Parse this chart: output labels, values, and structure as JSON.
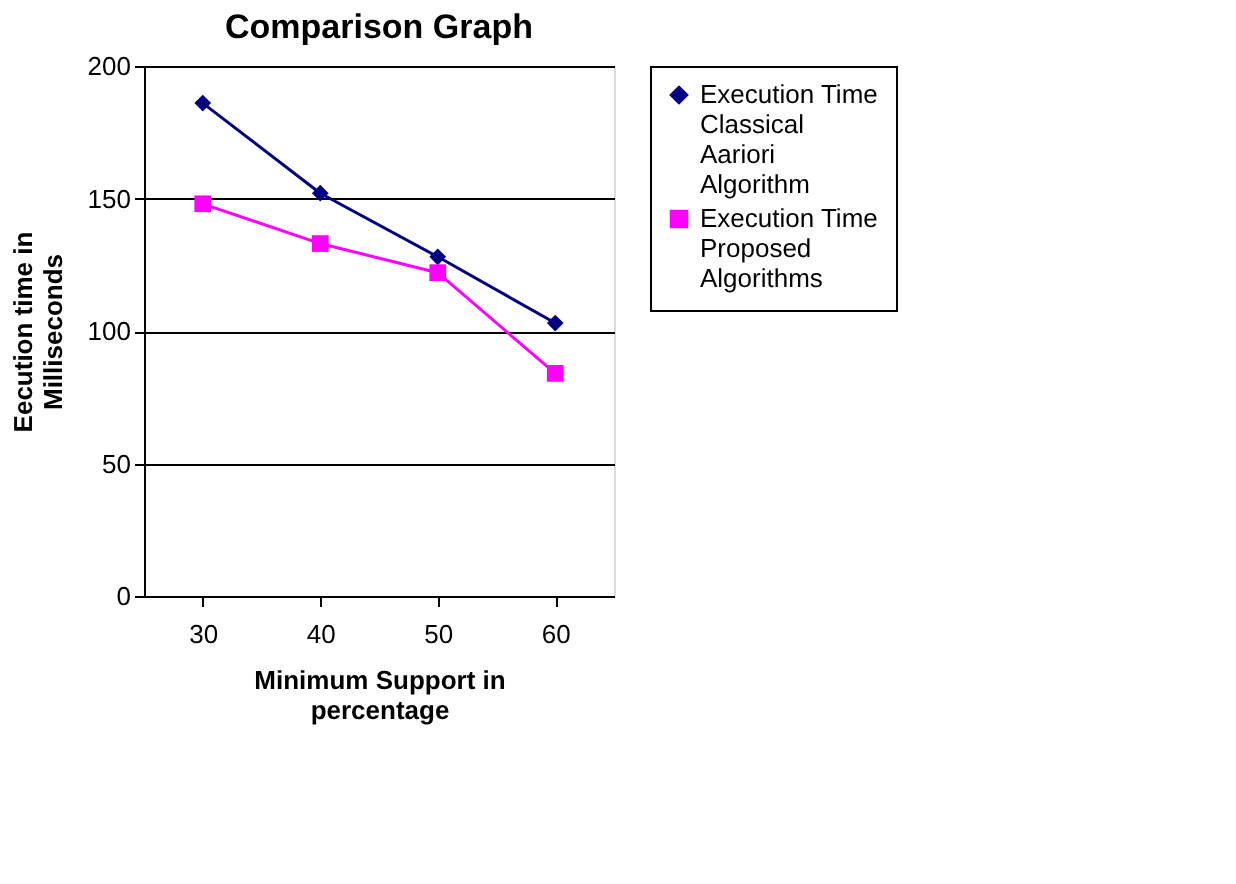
{
  "chart_data": {
    "type": "line",
    "title": "Comparison Graph",
    "xlabel": "Minimum Support in percentage",
    "ylabel": "Eecution time in Milliseconds",
    "categories": [
      "30",
      "40",
      "50",
      "60"
    ],
    "series": [
      {
        "name": "Execution Time Classical Aariori Algorithm",
        "color": "#000080",
        "values": [
          186,
          152,
          128,
          103
        ],
        "marker": "diamond"
      },
      {
        "name": "Execution Time Proposed Algorithms",
        "color": "#ff00ff",
        "values": [
          148,
          133,
          122,
          84
        ],
        "marker": "square"
      }
    ],
    "ylim": [
      0,
      200
    ],
    "yticks": [
      0,
      50,
      100,
      150,
      200
    ],
    "grid": "y",
    "legend": "right"
  }
}
